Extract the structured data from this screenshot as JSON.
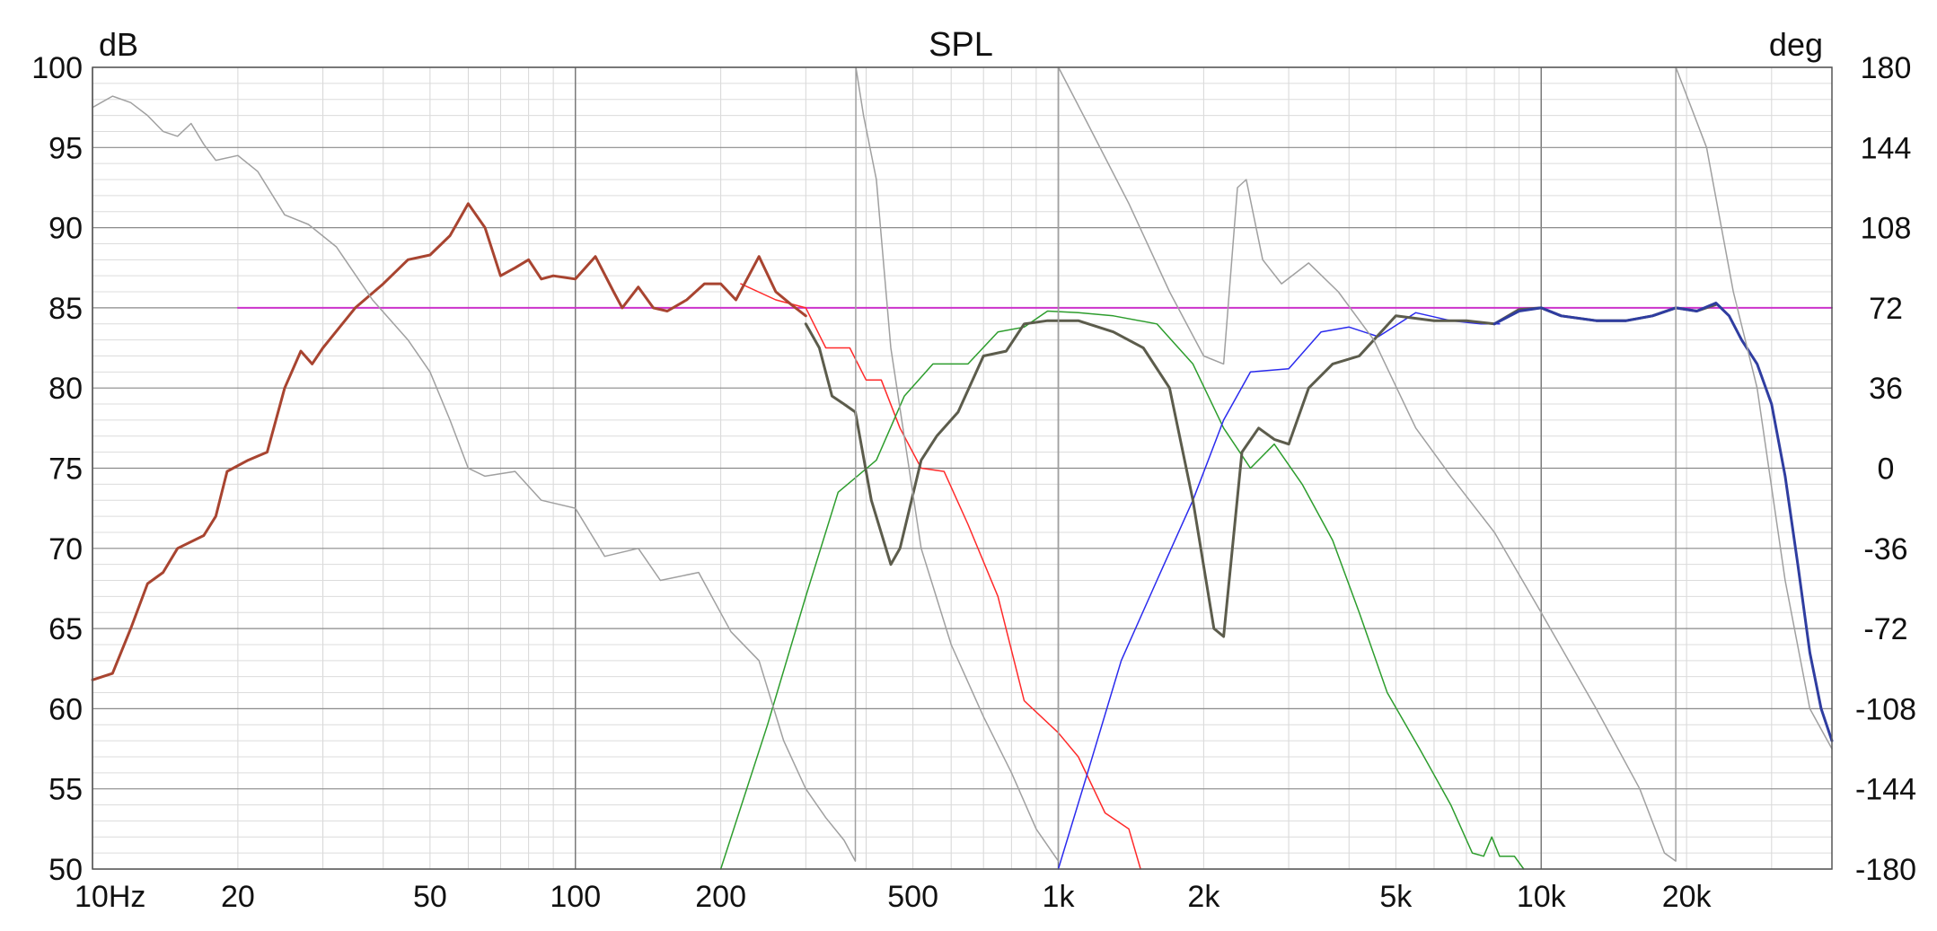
{
  "chart_data": {
    "type": "line",
    "title": "SPL",
    "ylabel_left": "dB",
    "ylabel_right": "deg",
    "x_scale": "log",
    "xlim": [
      10,
      40000
    ],
    "ylim_left": [
      50,
      100
    ],
    "ylim_right": [
      -180,
      180
    ],
    "grid": true,
    "x_ticks": [
      {
        "value": 10,
        "label": "10Hz"
      },
      {
        "value": 20,
        "label": "20"
      },
      {
        "value": 50,
        "label": "50"
      },
      {
        "value": 100,
        "label": "100"
      },
      {
        "value": 200,
        "label": "200"
      },
      {
        "value": 500,
        "label": "500"
      },
      {
        "value": 1000,
        "label": "1k"
      },
      {
        "value": 2000,
        "label": "2k"
      },
      {
        "value": 5000,
        "label": "5k"
      },
      {
        "value": 10000,
        "label": "10k"
      },
      {
        "value": 20000,
        "label": "20k"
      }
    ],
    "y_ticks_left": [
      {
        "value": 100,
        "label": "100"
      },
      {
        "value": 95,
        "label": "95"
      },
      {
        "value": 90,
        "label": "90"
      },
      {
        "value": 85,
        "label": "85"
      },
      {
        "value": 80,
        "label": "80"
      },
      {
        "value": 75,
        "label": "75"
      },
      {
        "value": 70,
        "label": "70"
      },
      {
        "value": 65,
        "label": "65"
      },
      {
        "value": 60,
        "label": "60"
      },
      {
        "value": 55,
        "label": "55"
      },
      {
        "value": 50,
        "label": "50"
      }
    ],
    "y_ticks_right": [
      {
        "value": 180,
        "label": "180"
      },
      {
        "value": 144,
        "label": "144"
      },
      {
        "value": 108,
        "label": "108"
      },
      {
        "value": 72,
        "label": "72"
      },
      {
        "value": 36,
        "label": "36"
      },
      {
        "value": 0,
        "label": "0"
      },
      {
        "value": -36,
        "label": "-36"
      },
      {
        "value": -72,
        "label": "-72"
      },
      {
        "value": -108,
        "label": "-108"
      },
      {
        "value": -144,
        "label": "-144"
      },
      {
        "value": -180,
        "label": "-180"
      }
    ],
    "series": [
      {
        "color": "#cc33cc",
        "width": 2,
        "points": [
          [
            20,
            85
          ],
          [
            40000,
            85
          ]
        ]
      },
      {
        "color": "#ff2a2a",
        "width": 1.5,
        "points": [
          [
            220,
            86.5
          ],
          [
            260,
            85.5
          ],
          [
            300,
            85
          ],
          [
            330,
            82.5
          ],
          [
            370,
            82.5
          ],
          [
            400,
            80.5
          ],
          [
            430,
            80.5
          ],
          [
            470,
            77.5
          ],
          [
            520,
            75
          ],
          [
            580,
            74.8
          ],
          [
            650,
            71.5
          ],
          [
            750,
            67
          ],
          [
            850,
            60.5
          ],
          [
            1000,
            58.5
          ],
          [
            1100,
            57
          ],
          [
            1250,
            53.5
          ],
          [
            1400,
            52.5
          ],
          [
            1480,
            50
          ]
        ]
      },
      {
        "color": "#2d9d2d",
        "width": 1.5,
        "points": [
          [
            200,
            50
          ],
          [
            250,
            59
          ],
          [
            300,
            67
          ],
          [
            350,
            73.5
          ],
          [
            420,
            75.5
          ],
          [
            480,
            79.5
          ],
          [
            550,
            81.5
          ],
          [
            650,
            81.5
          ],
          [
            750,
            83.5
          ],
          [
            850,
            83.8
          ],
          [
            950,
            84.8
          ],
          [
            1100,
            84.7
          ],
          [
            1300,
            84.5
          ],
          [
            1600,
            84
          ],
          [
            1900,
            81.5
          ],
          [
            2200,
            77.5
          ],
          [
            2500,
            75
          ],
          [
            2800,
            76.5
          ],
          [
            3200,
            74
          ],
          [
            3700,
            70.5
          ],
          [
            4200,
            66
          ],
          [
            4800,
            61
          ],
          [
            5600,
            57.5
          ],
          [
            6500,
            54
          ],
          [
            7200,
            51
          ],
          [
            7600,
            50.8
          ],
          [
            7900,
            52
          ],
          [
            8200,
            50.8
          ],
          [
            8800,
            50.8
          ],
          [
            9200,
            50
          ]
        ]
      },
      {
        "color": "#2a2aee",
        "width": 1.5,
        "points": [
          [
            1000,
            50
          ],
          [
            1150,
            56
          ],
          [
            1350,
            63
          ],
          [
            1600,
            68
          ],
          [
            1900,
            73
          ],
          [
            2200,
            78
          ],
          [
            2500,
            81
          ],
          [
            3000,
            81.2
          ],
          [
            3500,
            83.5
          ],
          [
            4000,
            83.8
          ],
          [
            4600,
            83.2
          ],
          [
            5500,
            84.7
          ],
          [
            6500,
            84.2
          ],
          [
            7500,
            84
          ],
          [
            8200,
            84
          ]
        ]
      },
      {
        "color": "#a84430",
        "width": 3,
        "points": [
          [
            10,
            61.8
          ],
          [
            11,
            62.2
          ],
          [
            12,
            65
          ],
          [
            13,
            67.8
          ],
          [
            14,
            68.5
          ],
          [
            15,
            70
          ],
          [
            17,
            70.8
          ],
          [
            18,
            72
          ],
          [
            19,
            74.8
          ],
          [
            21,
            75.5
          ],
          [
            23,
            76
          ],
          [
            25,
            80
          ],
          [
            27,
            82.3
          ],
          [
            28.5,
            81.5
          ],
          [
            30,
            82.5
          ],
          [
            35,
            85
          ],
          [
            40,
            86.5
          ],
          [
            45,
            88
          ],
          [
            50,
            88.3
          ],
          [
            55,
            89.5
          ],
          [
            60,
            91.5
          ],
          [
            65,
            90
          ],
          [
            70,
            87
          ],
          [
            75,
            87.5
          ],
          [
            80,
            88
          ],
          [
            85,
            86.8
          ],
          [
            90,
            87
          ],
          [
            100,
            86.8
          ],
          [
            110,
            88.2
          ],
          [
            120,
            86
          ],
          [
            125,
            85
          ],
          [
            135,
            86.3
          ],
          [
            145,
            85
          ],
          [
            155,
            84.8
          ],
          [
            170,
            85.5
          ],
          [
            185,
            86.5
          ],
          [
            200,
            86.5
          ],
          [
            215,
            85.5
          ],
          [
            240,
            88.2
          ],
          [
            260,
            86
          ],
          [
            280,
            85.2
          ],
          [
            300,
            84.5
          ]
        ]
      },
      {
        "color": "#5c5c4c",
        "width": 3,
        "points": [
          [
            300,
            84
          ],
          [
            320,
            82.5
          ],
          [
            340,
            79.5
          ],
          [
            360,
            79
          ],
          [
            380,
            78.5
          ],
          [
            410,
            73
          ],
          [
            450,
            69
          ],
          [
            470,
            70
          ],
          [
            520,
            75.5
          ],
          [
            560,
            77
          ],
          [
            620,
            78.5
          ],
          [
            700,
            82
          ],
          [
            780,
            82.3
          ],
          [
            850,
            84
          ],
          [
            950,
            84.2
          ],
          [
            1100,
            84.2
          ],
          [
            1300,
            83.5
          ],
          [
            1500,
            82.5
          ],
          [
            1700,
            80
          ],
          [
            1900,
            73
          ],
          [
            2100,
            65
          ],
          [
            2200,
            64.5
          ],
          [
            2400,
            76
          ],
          [
            2600,
            77.5
          ],
          [
            2800,
            76.8
          ],
          [
            3000,
            76.5
          ],
          [
            3300,
            80
          ],
          [
            3700,
            81.5
          ],
          [
            4200,
            82
          ],
          [
            5000,
            84.5
          ],
          [
            6000,
            84.2
          ],
          [
            7000,
            84.2
          ],
          [
            8000,
            84
          ],
          [
            9000,
            84.9
          ],
          [
            10000,
            85
          ],
          [
            11000,
            84.5
          ],
          [
            13000,
            84.2
          ],
          [
            15000,
            84.2
          ],
          [
            17000,
            84.5
          ],
          [
            19000,
            85
          ],
          [
            21000,
            84.8
          ],
          [
            23000,
            85.2
          ]
        ]
      },
      {
        "color": "#2f3da0",
        "width": 3,
        "points": [
          [
            8000,
            84
          ],
          [
            9000,
            84.8
          ],
          [
            10000,
            85
          ],
          [
            11000,
            84.5
          ],
          [
            13000,
            84.2
          ],
          [
            15000,
            84.2
          ],
          [
            17000,
            84.5
          ],
          [
            19000,
            85
          ],
          [
            21000,
            84.8
          ],
          [
            23000,
            85.3
          ],
          [
            24500,
            84.5
          ],
          [
            26000,
            83
          ],
          [
            28000,
            81.5
          ],
          [
            30000,
            79
          ],
          [
            32000,
            74.5
          ],
          [
            34000,
            69
          ],
          [
            36000,
            63.5
          ],
          [
            38000,
            60
          ],
          [
            40000,
            58
          ]
        ]
      },
      {
        "color": "#a0a0a0",
        "width": 1.5,
        "points": [
          [
            10,
            97.5
          ],
          [
            11,
            98.2
          ],
          [
            12,
            97.8
          ],
          [
            13,
            97
          ],
          [
            14,
            96
          ],
          [
            15,
            95.7
          ],
          [
            16,
            96.5
          ],
          [
            17,
            95.2
          ],
          [
            18,
            94.2
          ],
          [
            20,
            94.5
          ],
          [
            22,
            93.5
          ],
          [
            25,
            90.8
          ],
          [
            28,
            90.2
          ],
          [
            32,
            88.8
          ],
          [
            38,
            85.5
          ],
          [
            45,
            83
          ],
          [
            50,
            81
          ],
          [
            55,
            78
          ],
          [
            60,
            75
          ],
          [
            65,
            74.5
          ],
          [
            75,
            74.8
          ],
          [
            85,
            73
          ],
          [
            100,
            72.5
          ],
          [
            115,
            69.5
          ],
          [
            135,
            70
          ],
          [
            150,
            68
          ],
          [
            180,
            68.5
          ],
          [
            210,
            64.8
          ],
          [
            240,
            63
          ],
          [
            270,
            58
          ],
          [
            300,
            55
          ],
          [
            330,
            53.2
          ],
          [
            360,
            51.8
          ],
          [
            380,
            50.5
          ],
          [
            381,
            100
          ],
          [
            395,
            97
          ],
          [
            420,
            93
          ],
          [
            450,
            82.5
          ],
          [
            520,
            70
          ],
          [
            600,
            64
          ],
          [
            700,
            59.5
          ],
          [
            800,
            56
          ],
          [
            900,
            52.5
          ],
          [
            1000,
            50.5
          ],
          [
            1001,
            100
          ],
          [
            1150,
            96.5
          ],
          [
            1400,
            91.5
          ],
          [
            1700,
            86
          ],
          [
            2000,
            82
          ],
          [
            2200,
            81.5
          ],
          [
            2350,
            92.5
          ],
          [
            2450,
            93
          ],
          [
            2650,
            88
          ],
          [
            2900,
            86.5
          ],
          [
            3300,
            87.8
          ],
          [
            3800,
            86
          ],
          [
            4500,
            83
          ],
          [
            5500,
            77.5
          ],
          [
            6500,
            74.5
          ],
          [
            8000,
            71
          ],
          [
            10000,
            66
          ],
          [
            13000,
            60
          ],
          [
            16000,
            55
          ],
          [
            18000,
            51
          ],
          [
            19000,
            50.5
          ],
          [
            19001,
            100
          ],
          [
            22000,
            95
          ],
          [
            25000,
            86
          ],
          [
            28000,
            80
          ],
          [
            32000,
            68
          ],
          [
            36000,
            60
          ],
          [
            40000,
            57.5
          ]
        ]
      }
    ]
  }
}
